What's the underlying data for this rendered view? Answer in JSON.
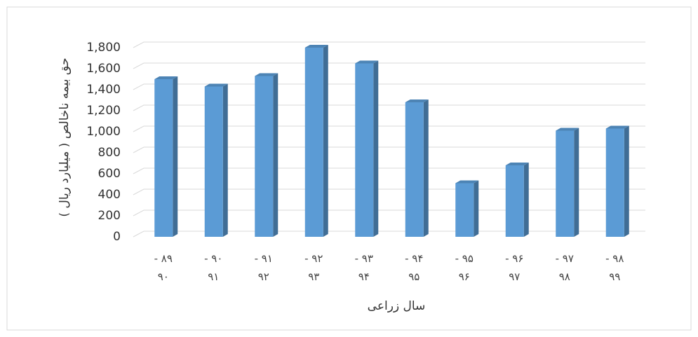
{
  "chart_data": {
    "type": "bar",
    "x_label": "سال زراعی",
    "y_label": "حق بیمه ناخالص ( میلیارد ریال )",
    "categories": [
      "۸۹ - ۹۰",
      "۹۰ - ۹۱",
      "۹۱ - ۹۲",
      "۹۲ - ۹۳",
      "۹۳ - ۹۴",
      "۹۴ - ۹۵",
      "۹۵ - ۹۶",
      "۹۶ - ۹۷",
      "۹۷ - ۹۸",
      "۹۸ - ۹۹"
    ],
    "values": [
      1500,
      1430,
      1530,
      1800,
      1650,
      1280,
      510,
      680,
      1010,
      1030
    ],
    "color": "#5b9bd5",
    "ylim": [
      0,
      1800
    ],
    "yticks": [
      0,
      200,
      400,
      600,
      800,
      {
        "value": 1000,
        "label": "1,000"
      },
      {
        "value": 1200,
        "label": "1,200"
      },
      {
        "value": 1400,
        "label": "1,400"
      },
      {
        "value": 1600,
        "label": "1,600"
      },
      {
        "value": 1800,
        "label": "1,800"
      }
    ],
    "grid": true
  }
}
